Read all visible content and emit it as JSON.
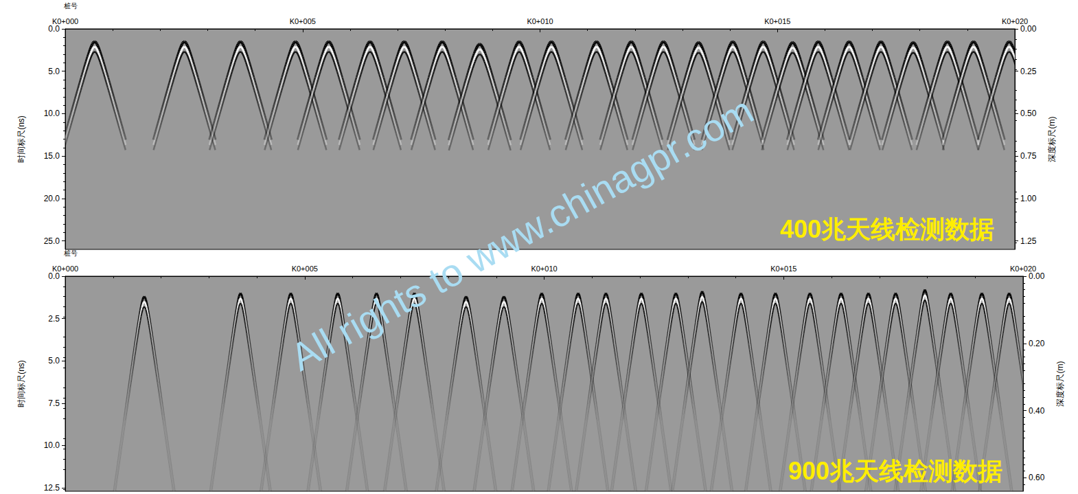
{
  "chart_data": [
    {
      "type": "scatter",
      "title": "400兆天线检测数据",
      "marker": "hyperbola",
      "color": "#000000",
      "xlabel": "桩号",
      "ylabel": "时间标尺(ns)",
      "y2label": "深度标尺(m)",
      "x": [
        0.62,
        2.51,
        3.69,
        4.85,
        5.55,
        6.42,
        7.14,
        7.94,
        8.73,
        9.56,
        10.24,
        11.19,
        11.92,
        12.6,
        13.34,
        14.06,
        14.7,
        15.32,
        15.86,
        16.51,
        17.18,
        17.86,
        18.58,
        19.13,
        19.88
      ],
      "values": [
        1.5,
        1.5,
        1.5,
        1.5,
        1.5,
        1.5,
        1.5,
        1.5,
        1.8,
        1.5,
        1.5,
        1.5,
        1.5,
        1.5,
        1.6,
        1.5,
        1.5,
        1.6,
        1.5,
        1.5,
        1.5,
        1.6,
        1.5,
        1.5,
        1.5
      ],
      "xlim": [
        0,
        20
      ],
      "xticks": [
        {
          "value": 0,
          "label": "K0+000"
        },
        {
          "value": 5,
          "label": "K0+005"
        },
        {
          "value": 10,
          "label": "K0+010"
        },
        {
          "value": 15,
          "label": "K0+015"
        },
        {
          "value": 20,
          "label": "K0+020"
        }
      ],
      "ylim": [
        0,
        26
      ],
      "yticks": [
        {
          "value": 0,
          "label": "0.0"
        },
        {
          "value": 5,
          "label": "5.0"
        },
        {
          "value": 10,
          "label": "10.0"
        },
        {
          "value": 15,
          "label": "15.0"
        },
        {
          "value": 20,
          "label": "20.0"
        },
        {
          "value": 25,
          "label": "25.0"
        }
      ],
      "y2lim": [
        0,
        1.3
      ],
      "y2ticks": [
        {
          "value": 0,
          "label": "0.00"
        },
        {
          "value": 0.25,
          "label": "0.25"
        },
        {
          "value": 0.5,
          "label": "0.50"
        },
        {
          "value": 0.75,
          "label": "0.75"
        },
        {
          "value": 1,
          "label": "1.00"
        },
        {
          "value": 1.25,
          "label": "1.25"
        }
      ],
      "grid": false
    },
    {
      "type": "scatter",
      "title": "900兆天线检测数据",
      "marker": "hyperbola",
      "color": "#000000",
      "xlabel": "桩号",
      "ylabel": "时间标尺(ns)",
      "y2label": "深度标尺(m)",
      "x": [
        1.65,
        3.66,
        4.71,
        5.69,
        6.5,
        7.29,
        8.37,
        9.16,
        9.95,
        10.71,
        11.29,
        12.03,
        12.75,
        13.3,
        14.11,
        14.83,
        15.55,
        16.2,
        16.77,
        17.34,
        17.95,
        18.49,
        19.14,
        19.71
      ],
      "values": [
        1.2,
        1.0,
        1.0,
        1.0,
        1.0,
        1.0,
        1.2,
        1.2,
        1.0,
        1.0,
        1.0,
        1.0,
        1.0,
        0.9,
        1.0,
        1.0,
        1.0,
        1.0,
        1.0,
        1.0,
        0.8,
        1.0,
        1.0,
        1.0
      ],
      "xlim": [
        0,
        20
      ],
      "xticks": [
        {
          "value": 0,
          "label": "K0+000"
        },
        {
          "value": 5,
          "label": "K0+005"
        },
        {
          "value": 10,
          "label": "K0+010"
        },
        {
          "value": 15,
          "label": "K0+015"
        },
        {
          "value": 20,
          "label": "K0+020"
        }
      ],
      "ylim": [
        0,
        12.7
      ],
      "yticks": [
        {
          "value": 0,
          "label": "0.0"
        },
        {
          "value": 2.5,
          "label": "2.5"
        },
        {
          "value": 5,
          "label": "5.0"
        },
        {
          "value": 7.5,
          "label": "7.5"
        },
        {
          "value": 10,
          "label": "10.0"
        },
        {
          "value": 12.5,
          "label": "12.5"
        }
      ],
      "y2lim": [
        0,
        0.64
      ],
      "y2ticks": [
        {
          "value": 0,
          "label": "0.00"
        },
        {
          "value": 0.2,
          "label": "0.20"
        },
        {
          "value": 0.4,
          "label": "0.40"
        },
        {
          "value": 0.6,
          "label": "0.60"
        }
      ],
      "grid": false
    }
  ],
  "watermark": "All rights to www.chinagpr.com"
}
